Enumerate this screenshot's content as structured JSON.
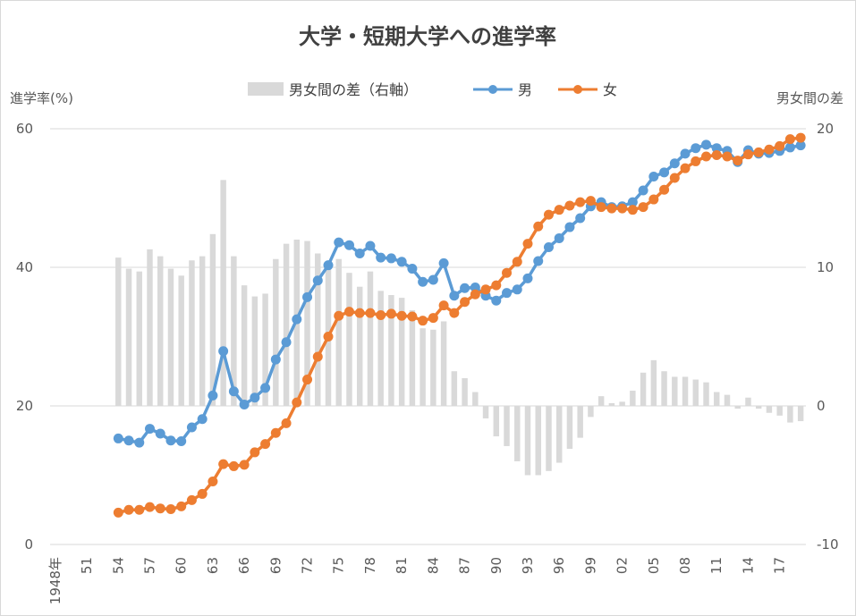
{
  "chart_data": {
    "type": "bar+line",
    "title": "大学・短期大学への進学率",
    "left_axis_label": "進学率(%)",
    "right_axis_label": "男女間の差",
    "left_ylim": [
      0,
      60
    ],
    "right_ylim": [
      -10,
      20
    ],
    "left_ticks": [
      "0",
      "20",
      "40",
      "60"
    ],
    "right_ticks": [
      "-10",
      "0",
      "10",
      "20"
    ],
    "grid": true,
    "legend_position": "top",
    "legend": {
      "diff": "男女間の差（右軸）",
      "male": "男",
      "female": "女"
    },
    "colors": {
      "male": "#5b9bd5",
      "female": "#ed7d31",
      "diff": "#d9d9d9",
      "grid": "#d9d9d9"
    },
    "year_start": 1948,
    "year_end": 2019,
    "x_tick_labels": [
      {
        "year": 1948,
        "label": "1948年"
      },
      {
        "year": 1951,
        "label": "51"
      },
      {
        "year": 1954,
        "label": "54"
      },
      {
        "year": 1957,
        "label": "57"
      },
      {
        "year": 1960,
        "label": "60"
      },
      {
        "year": 1963,
        "label": "63"
      },
      {
        "year": 1966,
        "label": "66"
      },
      {
        "year": 1969,
        "label": "69"
      },
      {
        "year": 1972,
        "label": "72"
      },
      {
        "year": 1975,
        "label": "75"
      },
      {
        "year": 1978,
        "label": "78"
      },
      {
        "year": 1981,
        "label": "81"
      },
      {
        "year": 1984,
        "label": "84"
      },
      {
        "year": 1987,
        "label": "87"
      },
      {
        "year": 1990,
        "label": "90"
      },
      {
        "year": 1993,
        "label": "93"
      },
      {
        "year": 1996,
        "label": "96"
      },
      {
        "year": 1999,
        "label": "99"
      },
      {
        "year": 2002,
        "label": "02"
      },
      {
        "year": 2005,
        "label": "05"
      },
      {
        "year": 2008,
        "label": "08"
      },
      {
        "year": 2011,
        "label": "11"
      },
      {
        "year": 2014,
        "label": "14"
      },
      {
        "year": 2017,
        "label": "17"
      }
    ],
    "series": [
      {
        "key": "male",
        "name": "男",
        "axis": "left",
        "x": [
          1954,
          1955,
          1956,
          1957,
          1958,
          1959,
          1960,
          1961,
          1962,
          1963,
          1964,
          1965,
          1966,
          1967,
          1968,
          1969,
          1970,
          1971,
          1972,
          1973,
          1974,
          1975,
          1976,
          1977,
          1978,
          1979,
          1980,
          1981,
          1982,
          1983,
          1984,
          1985,
          1986,
          1987,
          1988,
          1989,
          1990,
          1991,
          1992,
          1993,
          1994,
          1995,
          1996,
          1997,
          1998,
          1999,
          2000,
          2001,
          2002,
          2003,
          2004,
          2005,
          2006,
          2007,
          2008,
          2009,
          2010,
          2011,
          2012,
          2013,
          2014,
          2015,
          2016,
          2017,
          2018,
          2019
        ],
        "values": [
          15.3,
          15.0,
          14.7,
          16.7,
          16.0,
          15.0,
          14.9,
          16.9,
          18.1,
          21.5,
          27.9,
          22.1,
          20.2,
          21.2,
          22.6,
          26.7,
          29.2,
          32.5,
          35.7,
          38.1,
          40.3,
          43.6,
          43.2,
          42.0,
          43.1,
          41.4,
          41.3,
          40.8,
          39.8,
          37.9,
          38.2,
          40.6,
          35.9,
          37.0,
          37.1,
          35.9,
          35.2,
          36.3,
          36.8,
          38.4,
          40.9,
          42.9,
          44.2,
          45.8,
          47.1,
          48.8,
          49.4,
          48.7,
          48.8,
          49.4,
          51.1,
          53.1,
          53.7,
          55.0,
          56.4,
          57.2,
          57.7,
          57.2,
          56.8,
          55.2,
          56.9,
          56.4,
          56.5,
          56.8,
          57.3,
          57.6
        ]
      },
      {
        "key": "female",
        "name": "女",
        "axis": "left",
        "x": [
          1954,
          1955,
          1956,
          1957,
          1958,
          1959,
          1960,
          1961,
          1962,
          1963,
          1964,
          1965,
          1966,
          1967,
          1968,
          1969,
          1970,
          1971,
          1972,
          1973,
          1974,
          1975,
          1976,
          1977,
          1978,
          1979,
          1980,
          1981,
          1982,
          1983,
          1984,
          1985,
          1986,
          1987,
          1988,
          1989,
          1990,
          1991,
          1992,
          1993,
          1994,
          1995,
          1996,
          1997,
          1998,
          1999,
          2000,
          2001,
          2002,
          2003,
          2004,
          2005,
          2006,
          2007,
          2008,
          2009,
          2010,
          2011,
          2012,
          2013,
          2014,
          2015,
          2016,
          2017,
          2018,
          2019
        ],
        "values": [
          4.6,
          5.0,
          5.0,
          5.4,
          5.2,
          5.1,
          5.5,
          6.4,
          7.3,
          9.1,
          11.6,
          11.3,
          11.5,
          13.3,
          14.5,
          16.1,
          17.5,
          20.5,
          23.8,
          27.1,
          30.0,
          33.0,
          33.6,
          33.4,
          33.4,
          33.1,
          33.3,
          33.0,
          32.9,
          32.3,
          32.7,
          34.5,
          33.4,
          35.0,
          36.1,
          36.8,
          37.4,
          39.2,
          40.8,
          43.4,
          45.9,
          47.6,
          48.3,
          48.9,
          49.4,
          49.6,
          48.7,
          48.5,
          48.5,
          48.3,
          48.7,
          49.8,
          51.2,
          52.9,
          54.3,
          55.3,
          56.0,
          56.2,
          56.0,
          55.4,
          56.3,
          56.6,
          57.0,
          57.5,
          58.5,
          58.7
        ]
      },
      {
        "key": "diff",
        "name": "男女間の差（右軸）",
        "axis": "right",
        "type": "bar",
        "x": [
          1954,
          1955,
          1956,
          1957,
          1958,
          1959,
          1960,
          1961,
          1962,
          1963,
          1964,
          1965,
          1966,
          1967,
          1968,
          1969,
          1970,
          1971,
          1972,
          1973,
          1974,
          1975,
          1976,
          1977,
          1978,
          1979,
          1980,
          1981,
          1982,
          1983,
          1984,
          1985,
          1986,
          1987,
          1988,
          1989,
          1990,
          1991,
          1992,
          1993,
          1994,
          1995,
          1996,
          1997,
          1998,
          1999,
          2000,
          2001,
          2002,
          2003,
          2004,
          2005,
          2006,
          2007,
          2008,
          2009,
          2010,
          2011,
          2012,
          2013,
          2014,
          2015,
          2016,
          2017,
          2018,
          2019
        ],
        "values": [
          10.7,
          9.9,
          9.7,
          11.3,
          10.8,
          9.9,
          9.4,
          10.5,
          10.8,
          12.4,
          16.3,
          10.8,
          8.7,
          7.9,
          8.1,
          10.6,
          11.7,
          12.0,
          11.9,
          11.0,
          10.3,
          10.6,
          9.6,
          8.6,
          9.7,
          8.3,
          8.0,
          7.8,
          6.9,
          5.6,
          5.5,
          6.1,
          2.5,
          2.0,
          1.0,
          -0.9,
          -2.2,
          -2.9,
          -4.0,
          -5.0,
          -5.0,
          -4.7,
          -4.1,
          -3.1,
          -2.3,
          -0.8,
          0.7,
          0.2,
          0.3,
          1.1,
          2.4,
          3.3,
          2.5,
          2.1,
          2.1,
          1.9,
          1.7,
          1.0,
          0.8,
          -0.2,
          0.6,
          -0.2,
          -0.5,
          -0.7,
          -1.2,
          -1.1
        ]
      }
    ]
  }
}
